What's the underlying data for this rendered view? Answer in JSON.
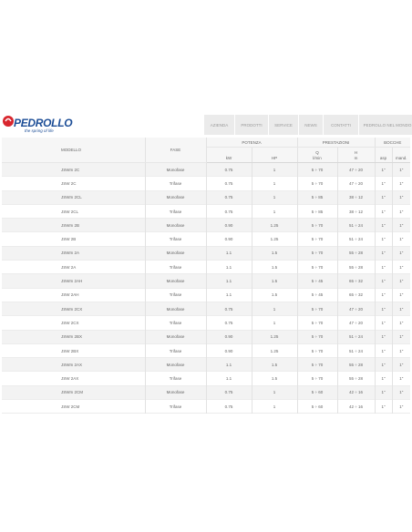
{
  "brand": {
    "name": "PEDROLLO",
    "tagline": "the spring of life"
  },
  "nav": [
    "AZIENDA",
    "PRODOTTI",
    "SERVICE",
    "NEWS",
    "CONTATTI",
    "PEDROLLO NEL MONDO"
  ],
  "table": {
    "headers": {
      "modello": "MODELLO",
      "fase": "FASE",
      "potenza": "POTENZA",
      "kw": "kW",
      "hp": "HP",
      "prestazioni": "PRESTAZIONI",
      "q": "Q",
      "q_unit": "l/min",
      "h": "H",
      "h_unit": "m",
      "bocche": "BOCCHE",
      "asp": "asp",
      "mand": "mand."
    },
    "rows": [
      [
        "JSWm 2C",
        "Monofase",
        "0.75",
        "1",
        "5 ÷ 70",
        "47 ÷ 20",
        "1\"",
        "1\""
      ],
      [
        "JSW 2C",
        "Trifase",
        "0.75",
        "1",
        "5 ÷ 70",
        "47 ÷ 20",
        "1\"",
        "1\""
      ],
      [
        "JSWm 2CL",
        "Monofase",
        "0.75",
        "1",
        "5 ÷ 85",
        "38 ÷ 12",
        "1\"",
        "1\""
      ],
      [
        "JSW 2CL",
        "Trifase",
        "0.75",
        "1",
        "5 ÷ 85",
        "38 ÷ 12",
        "1\"",
        "1\""
      ],
      [
        "JSWm 2B",
        "Monofase",
        "0.90",
        "1.25",
        "5 ÷ 70",
        "51 ÷ 24",
        "1\"",
        "1\""
      ],
      [
        "JSW 2B",
        "Trifase",
        "0.90",
        "1.25",
        "5 ÷ 70",
        "51 ÷ 24",
        "1\"",
        "1\""
      ],
      [
        "JSWm 2A",
        "Monofase",
        "1.1",
        "1.5",
        "5 ÷ 70",
        "55 ÷ 28",
        "1\"",
        "1\""
      ],
      [
        "JSW 2A",
        "Trifase",
        "1.1",
        "1.5",
        "5 ÷ 70",
        "55 ÷ 28",
        "1\"",
        "1\""
      ],
      [
        "JSWm 2AH",
        "Monofase",
        "1.1",
        "1.5",
        "5 ÷ 45",
        "65 ÷ 32",
        "1\"",
        "1\""
      ],
      [
        "JSW 2AH",
        "Trifase",
        "1.1",
        "1.5",
        "5 ÷ 45",
        "65 ÷ 32",
        "1\"",
        "1\""
      ],
      [
        "JSWm 2CX",
        "Monofase",
        "0.75",
        "1",
        "5 ÷ 70",
        "47 ÷ 20",
        "1\"",
        "1\""
      ],
      [
        "JSW 2CX",
        "Trifase",
        "0.75",
        "1",
        "5 ÷ 70",
        "47 ÷ 20",
        "1\"",
        "1\""
      ],
      [
        "JSWm 2BX",
        "Monofase",
        "0.90",
        "1.25",
        "5 ÷ 70",
        "51 ÷ 24",
        "1\"",
        "1\""
      ],
      [
        "JSW 2BX",
        "Trifase",
        "0.90",
        "1.25",
        "5 ÷ 70",
        "51 ÷ 24",
        "1\"",
        "1\""
      ],
      [
        "JSWm 2AX",
        "Monofase",
        "1.1",
        "1.5",
        "5 ÷ 70",
        "55 ÷ 28",
        "1\"",
        "1\""
      ],
      [
        "JSW 2AX",
        "Trifase",
        "1.1",
        "1.5",
        "5 ÷ 70",
        "55 ÷ 28",
        "1\"",
        "1\""
      ],
      [
        "JSWm 2CM",
        "Monofase",
        "0.75",
        "1",
        "5 ÷ 60",
        "42 ÷ 16",
        "1\"",
        "1\""
      ],
      [
        "JSW 2CM",
        "Trifase",
        "0.75",
        "1",
        "5 ÷ 60",
        "42 ÷ 16",
        "1\"",
        "1\""
      ]
    ]
  },
  "colors": {
    "brand_red": "#d8262e",
    "brand_blue": "#1d4e97",
    "nav_bg": "#ebebeb",
    "row_alt": "#f3f3f3"
  }
}
